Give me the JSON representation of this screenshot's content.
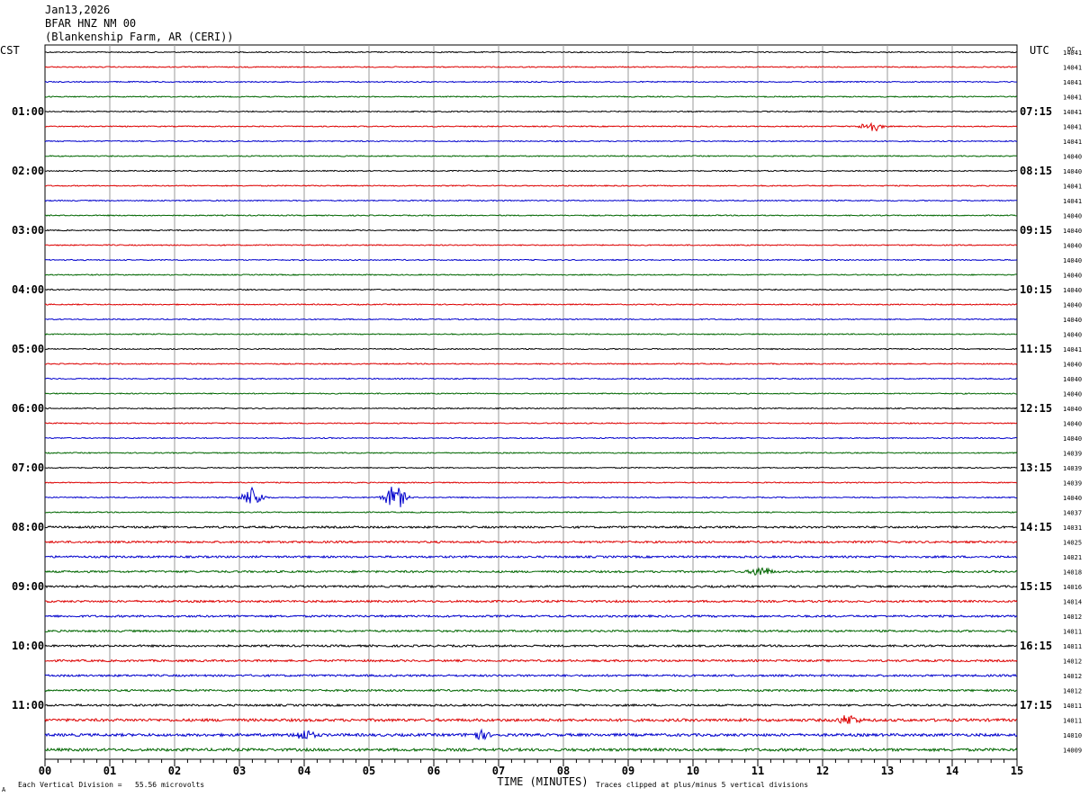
{
  "header": {
    "date": "Jan13,2026",
    "station": "BFAR HNZ NM 00",
    "location": "(Blankenship Farm, AR (CERI))"
  },
  "labels": {
    "left_tz": "CST",
    "right_tz": "UTC",
    "dc_header": "DC",
    "xlabel": "TIME (MINUTES)",
    "scale_note": "Each Vertical Division =   55.56 microvolts",
    "clip_note": "Traces clipped at plus/minus 5 vertical divisions",
    "corner_mark": "A"
  },
  "colors": {
    "trace_cycle": [
      "#000000",
      "#dd0000",
      "#0000cc",
      "#006600"
    ],
    "grid": "#999999"
  },
  "chart_data": {
    "type": "line",
    "description_kind": "helicorder",
    "minutes_per_line": 15,
    "line_count": 48,
    "x_ticks": [
      "00",
      "01",
      "02",
      "03",
      "04",
      "05",
      "06",
      "07",
      "08",
      "09",
      "10",
      "11",
      "12",
      "13",
      "14",
      "15"
    ],
    "xlim": [
      0,
      15
    ],
    "left_hour_labels": [
      "01:00",
      "02:00",
      "03:00",
      "04:00",
      "05:00",
      "06:00",
      "07:00",
      "08:00",
      "09:00",
      "10:00",
      "11:00"
    ],
    "right_hour_labels": [
      "07:15",
      "08:15",
      "09:15",
      "10:15",
      "11:15",
      "12:15",
      "13:15",
      "14:15",
      "15:15",
      "16:15",
      "17:15"
    ],
    "dc_values": [
      "14041",
      "14041",
      "14041",
      "14041",
      "14041",
      "14041",
      "14041",
      "14040",
      "14040",
      "14041",
      "14041",
      "14040",
      "14040",
      "14040",
      "14040",
      "14040",
      "14040",
      "14040",
      "14040",
      "14040",
      "14041",
      "14040",
      "14040",
      "14040",
      "14040",
      "14040",
      "14040",
      "14039",
      "14039",
      "14039",
      "14040",
      "14037",
      "14031",
      "14025",
      "14021",
      "14018",
      "14016",
      "14014",
      "14012",
      "14011",
      "14011",
      "14012",
      "14012",
      "14012",
      "14011",
      "14011",
      "14010",
      "14009"
    ],
    "events": [
      {
        "line": 30,
        "minute": 3.2,
        "amplitude": 2.2
      },
      {
        "line": 30,
        "minute": 5.4,
        "amplitude": 3.0
      },
      {
        "line": 5,
        "minute": 12.75,
        "amplitude": 1.2
      },
      {
        "line": 35,
        "minute": 11.05,
        "amplitude": 1.0
      },
      {
        "line": 45,
        "minute": 12.4,
        "amplitude": 1.0
      },
      {
        "line": 46,
        "minute": 4.0,
        "amplitude": 1.0
      },
      {
        "line": 46,
        "minute": 6.7,
        "amplitude": 0.9
      }
    ]
  }
}
